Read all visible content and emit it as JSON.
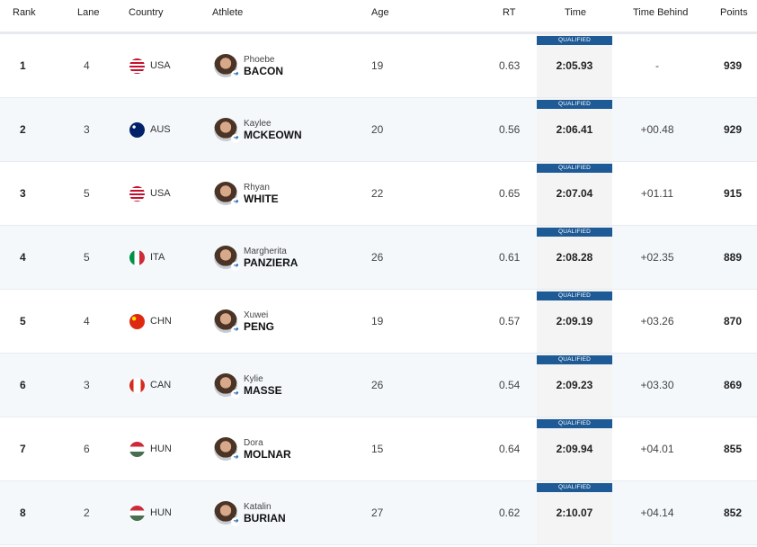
{
  "headers": {
    "rank": "Rank",
    "lane": "Lane",
    "country": "Country",
    "athlete": "Athlete",
    "age": "Age",
    "rt": "RT",
    "time": "Time",
    "behind": "Time Behind",
    "points": "Points"
  },
  "badge_color": "#1d5a96",
  "rows": [
    {
      "rank": "1",
      "lane": "4",
      "country": "USA",
      "first": "Phoebe",
      "last": "BACON",
      "age": "19",
      "rt": "0.63",
      "status": "QUALIFIED",
      "time": "2:05.93",
      "behind": "-",
      "points": "939"
    },
    {
      "rank": "2",
      "lane": "3",
      "country": "AUS",
      "first": "Kaylee",
      "last": "MCKEOWN",
      "age": "20",
      "rt": "0.56",
      "status": "QUALIFIED",
      "time": "2:06.41",
      "behind": "+00.48",
      "points": "929"
    },
    {
      "rank": "3",
      "lane": "5",
      "country": "USA",
      "first": "Rhyan",
      "last": "WHITE",
      "age": "22",
      "rt": "0.65",
      "status": "QUALIFIED",
      "time": "2:07.04",
      "behind": "+01.11",
      "points": "915"
    },
    {
      "rank": "4",
      "lane": "5",
      "country": "ITA",
      "first": "Margherita",
      "last": "PANZIERA",
      "age": "26",
      "rt": "0.61",
      "status": "QUALIFIED",
      "time": "2:08.28",
      "behind": "+02.35",
      "points": "889"
    },
    {
      "rank": "5",
      "lane": "4",
      "country": "CHN",
      "first": "Xuwei",
      "last": "PENG",
      "age": "19",
      "rt": "0.57",
      "status": "QUALIFIED",
      "time": "2:09.19",
      "behind": "+03.26",
      "points": "870"
    },
    {
      "rank": "6",
      "lane": "3",
      "country": "CAN",
      "first": "Kylie",
      "last": "MASSE",
      "age": "26",
      "rt": "0.54",
      "status": "QUALIFIED",
      "time": "2:09.23",
      "behind": "+03.30",
      "points": "869"
    },
    {
      "rank": "7",
      "lane": "6",
      "country": "HUN",
      "first": "Dora",
      "last": "MOLNAR",
      "age": "15",
      "rt": "0.64",
      "status": "QUALIFIED",
      "time": "2:09.94",
      "behind": "+04.01",
      "points": "855"
    },
    {
      "rank": "8",
      "lane": "2",
      "country": "HUN",
      "first": "Katalin",
      "last": "BURIAN",
      "age": "27",
      "rt": "0.62",
      "status": "QUALIFIED",
      "time": "2:10.07",
      "behind": "+04.14",
      "points": "852"
    }
  ]
}
